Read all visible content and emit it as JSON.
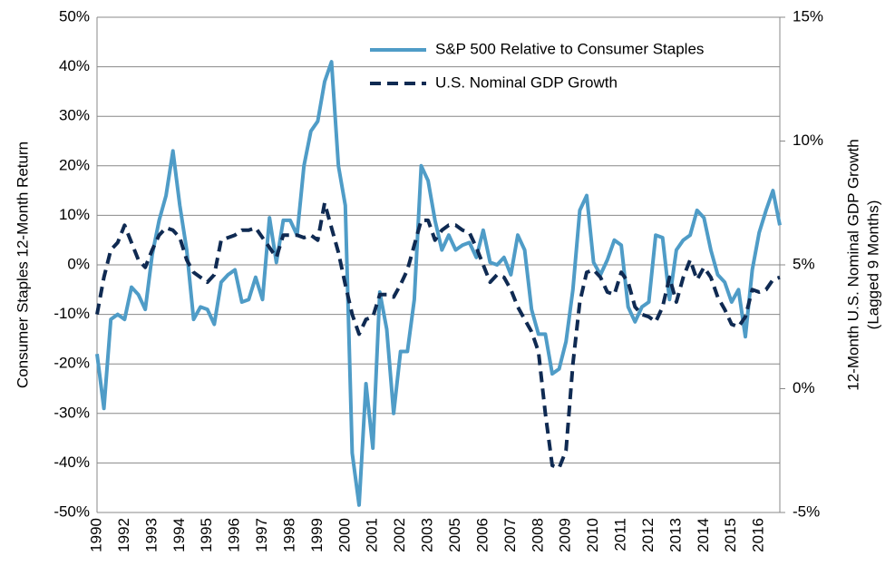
{
  "chart_data": {
    "type": "line",
    "ylabel": "Consumer Staples 12-Month Return",
    "y2label": [
      "12-Month U.S. Nominal GDP Growth",
      "(Lagged 9 Months)"
    ],
    "categories": [
      "1990",
      null,
      null,
      null,
      "1992",
      null,
      null,
      null,
      "1993",
      null,
      null,
      null,
      "1994",
      null,
      null,
      null,
      "1995",
      null,
      null,
      null,
      "1996",
      null,
      null,
      null,
      "1997",
      null,
      null,
      null,
      "1998",
      null,
      null,
      null,
      "1999",
      null,
      null,
      null,
      "2000",
      null,
      null,
      null,
      "2001",
      null,
      null,
      null,
      "2002",
      null,
      null,
      null,
      "2003",
      null,
      null,
      null,
      "2005",
      null,
      null,
      null,
      "2006",
      null,
      null,
      null,
      "2007",
      null,
      null,
      null,
      "2008",
      null,
      null,
      null,
      "2009",
      null,
      null,
      null,
      "2010",
      null,
      null,
      null,
      "2011",
      null,
      null,
      null,
      "2012",
      null,
      null,
      null,
      "2013",
      null,
      null,
      null,
      "2014",
      null,
      null,
      null,
      "2015",
      null,
      null,
      null,
      "2016",
      null,
      null,
      null
    ],
    "series": [
      {
        "name": "S&P 500 Relative to Consumer Staples",
        "color": "#4f9cc7",
        "axis": "y",
        "values": [
          -18,
          -29,
          -11,
          -10,
          -11,
          -4.5,
          -6,
          -9,
          2,
          9,
          14,
          23,
          12,
          3,
          -11,
          -8.5,
          -9,
          -12,
          -3.5,
          -2,
          -1,
          -7.5,
          -7,
          -2.5,
          -7,
          9.5,
          0.5,
          9,
          9,
          6,
          20,
          27,
          29,
          37,
          41,
          20,
          12,
          -38,
          -48.5,
          -24,
          -37,
          -5.5,
          -13,
          -30,
          -17.5,
          -17.5,
          -7,
          20,
          17,
          9,
          3,
          6,
          3,
          4,
          4.5,
          1.5,
          7,
          0.5,
          0,
          1.5,
          -2,
          6,
          3,
          -9,
          -14,
          -14,
          -22,
          -21,
          -15.5,
          -5,
          11,
          14,
          0.5,
          -2,
          1,
          5,
          4,
          -8.5,
          -11.5,
          -8.5,
          -7.5,
          6,
          5.5,
          -7,
          3,
          5,
          6,
          11,
          9.5,
          3,
          -2,
          -3.5,
          -7.5,
          -5,
          -14.5,
          -1,
          6.5,
          11,
          15,
          8
        ]
      },
      {
        "name": "U.S. Nominal GDP Growth",
        "color": "#0f2a52",
        "axis": "y2",
        "dashed": true,
        "values": [
          3,
          4.5,
          5.6,
          5.9,
          6.6,
          5.9,
          5.2,
          4.9,
          5.6,
          6.2,
          6.5,
          6.4,
          6.1,
          5.2,
          4.7,
          4.5,
          4.3,
          4.6,
          6,
          6.1,
          6.2,
          6.4,
          6.4,
          6.5,
          6.1,
          5.7,
          5.3,
          6.2,
          6.2,
          6.2,
          6.1,
          6.2,
          6,
          7.5,
          6.5,
          5.5,
          4.2,
          3,
          2.2,
          2.8,
          2.9,
          3.8,
          3.8,
          3.7,
          4.2,
          4.8,
          5.8,
          6.8,
          6.8,
          6,
          6.4,
          6.6,
          6.6,
          6.4,
          6.3,
          5.7,
          5,
          4.3,
          4.6,
          4.5,
          4,
          3.3,
          2.8,
          2.3,
          1.5,
          -1,
          -3.1,
          -3.2,
          -2.5,
          1,
          3.5,
          4.7,
          4.8,
          4.5,
          3.9,
          3.8,
          4.7,
          4.3,
          3.3,
          3,
          2.9,
          2.7,
          3.3,
          4.5,
          3.5,
          4.5,
          5.2,
          4.4,
          4.9,
          4.5,
          3.7,
          3.2,
          2.6,
          2.5,
          2.9,
          4,
          3.9,
          4,
          4.4,
          4.5
        ]
      }
    ],
    "ylim": [
      -50,
      50
    ],
    "yticks": [
      {
        "value": -50,
        "label": "-50%"
      },
      {
        "value": -40,
        "label": "-40%"
      },
      {
        "value": -30,
        "label": "-30%"
      },
      {
        "value": -20,
        "label": "-20%"
      },
      {
        "value": -10,
        "label": "-10%"
      },
      {
        "value": 0,
        "label": "0%"
      },
      {
        "value": 10,
        "label": "10%"
      },
      {
        "value": 20,
        "label": "20%"
      },
      {
        "value": 30,
        "label": "30%"
      },
      {
        "value": 40,
        "label": "40%"
      },
      {
        "value": 50,
        "label": "50%"
      }
    ],
    "y2lim": [
      -5,
      15
    ],
    "y2ticks": [
      {
        "value": -5,
        "label": "-5%"
      },
      {
        "value": 0,
        "label": "0%"
      },
      {
        "value": 5,
        "label": "5%"
      },
      {
        "value": 10,
        "label": "10%"
      },
      {
        "value": 15,
        "label": "15%"
      }
    ],
    "grid": true,
    "legend": "top-right"
  }
}
